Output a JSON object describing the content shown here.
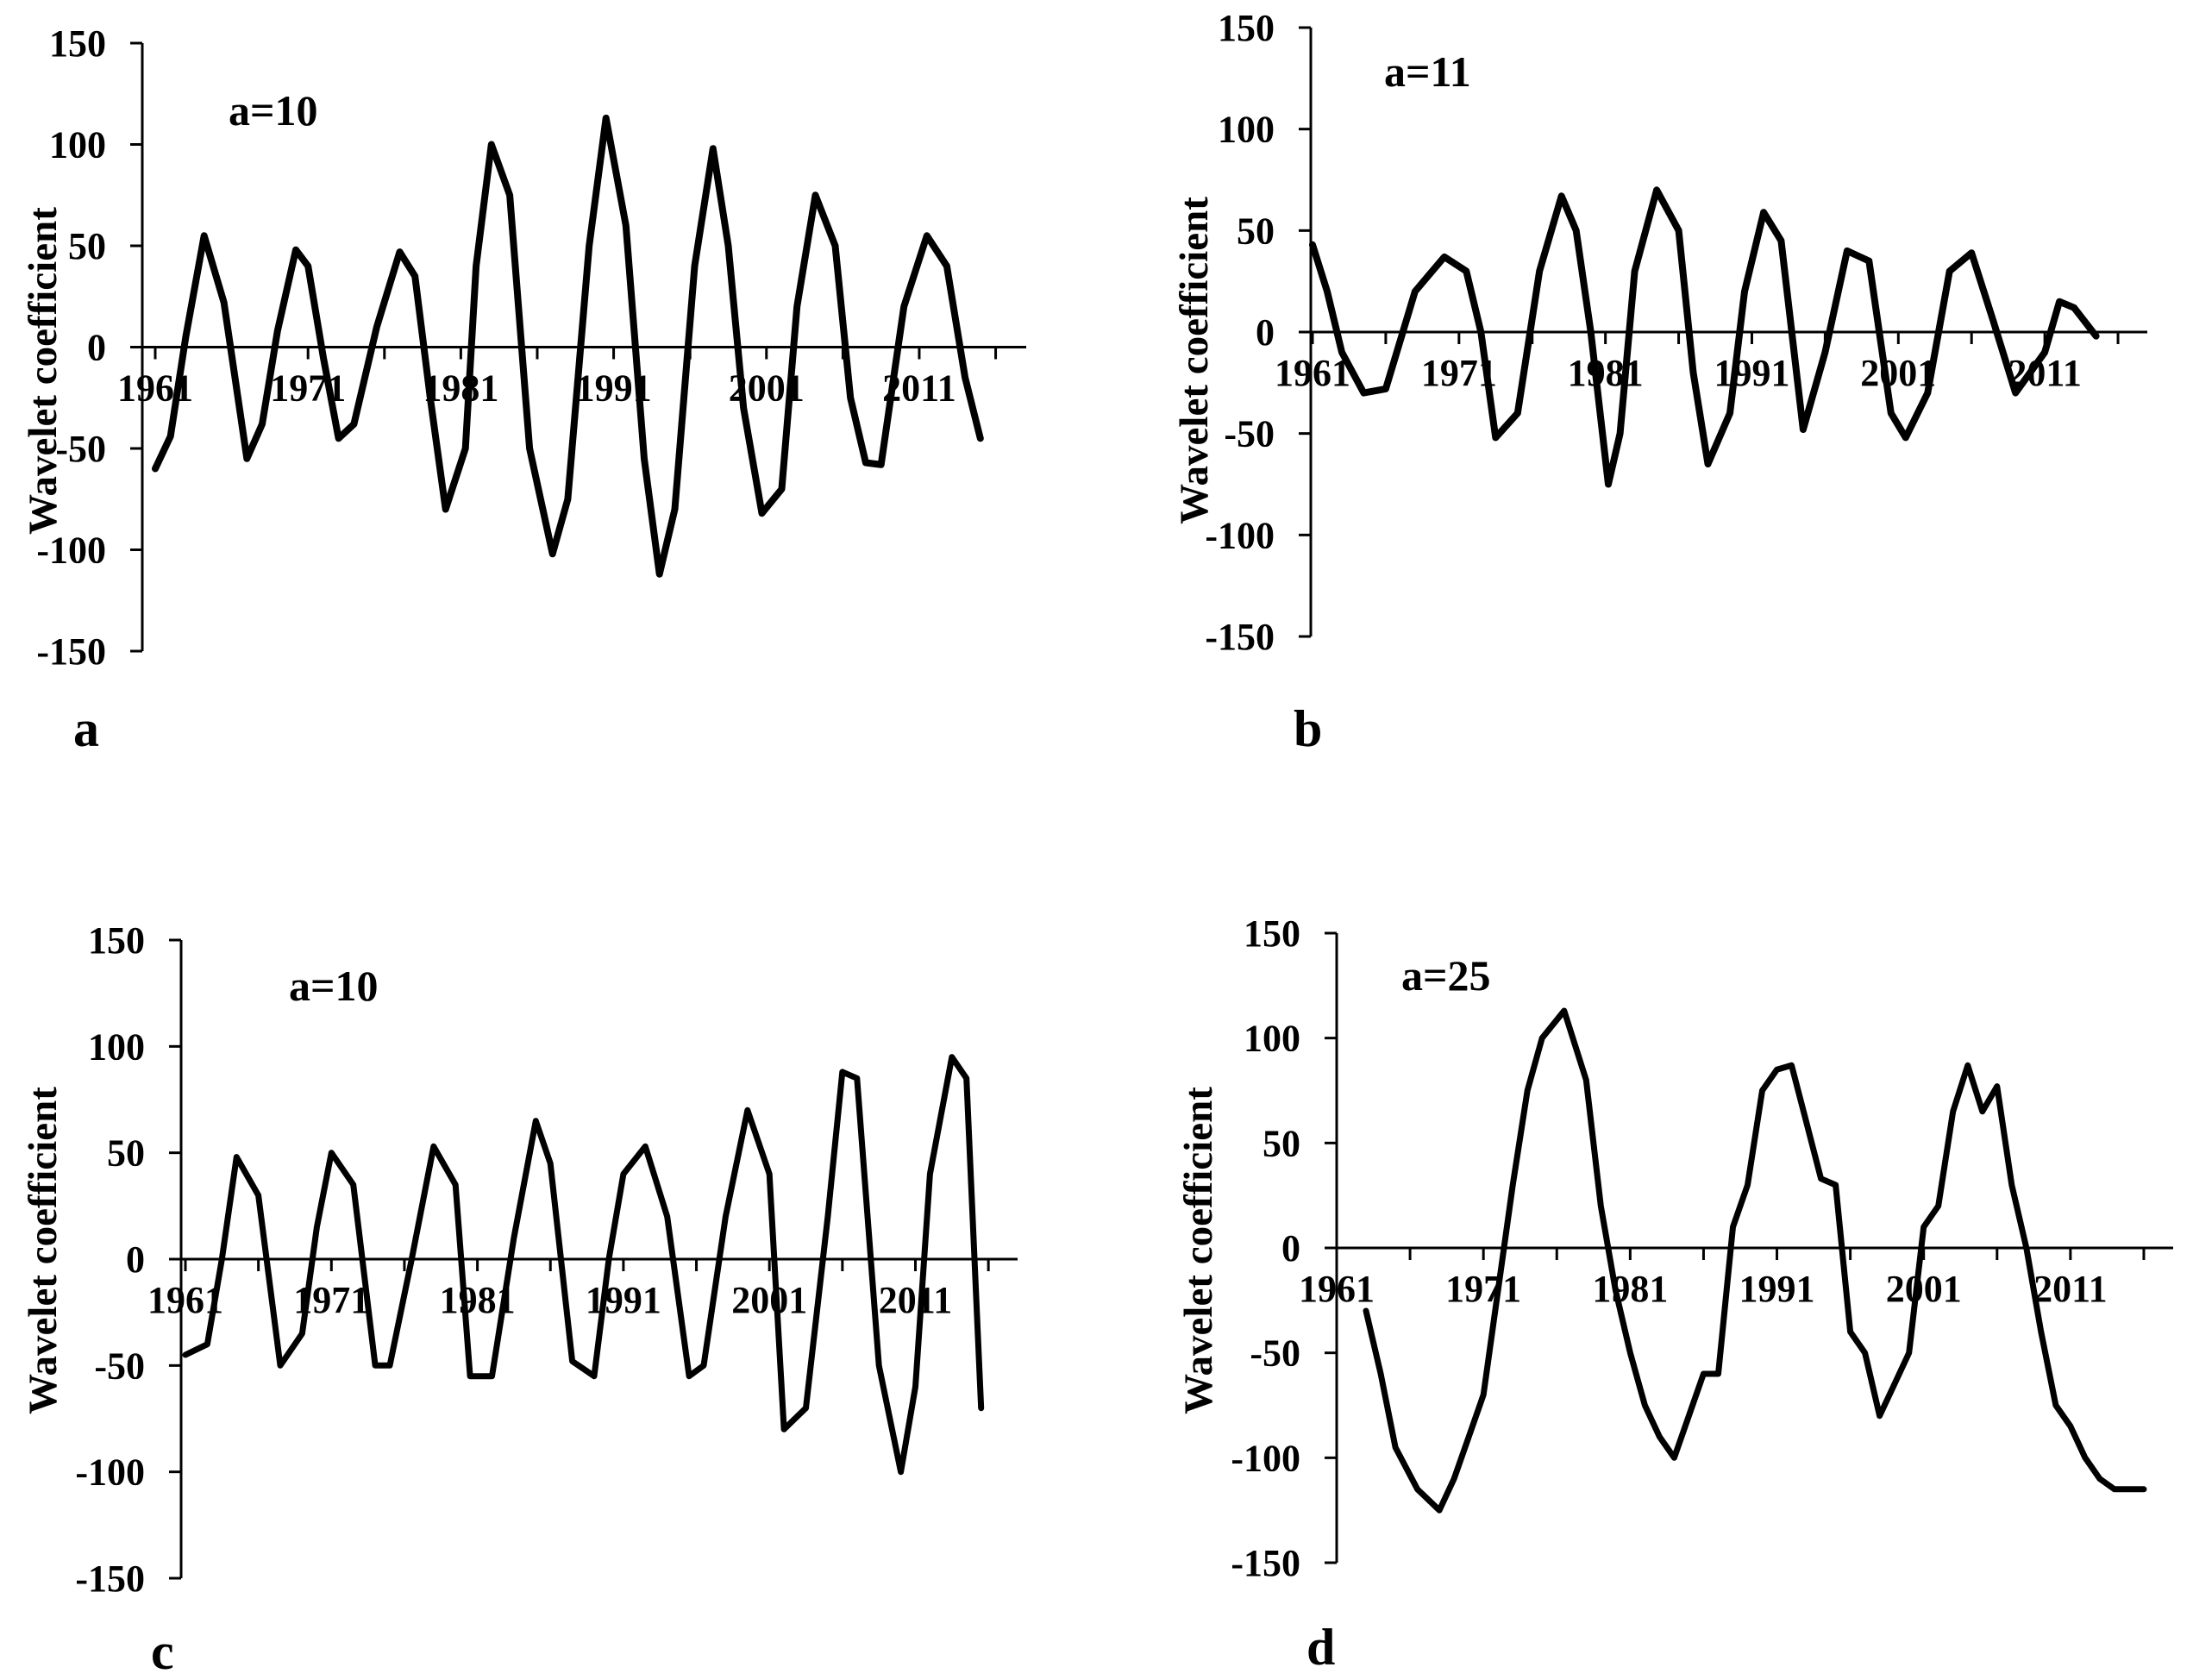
{
  "colors": {
    "line": "#000000",
    "axis": "#000000",
    "background": "#ffffff"
  },
  "chart_data": [
    {
      "panel_label": "a",
      "type": "line",
      "annotation": "a=10",
      "xlabel": "",
      "ylabel": "Wavelet coefficient",
      "ylim": [
        -150,
        150
      ],
      "xlim": [
        1961,
        2018
      ],
      "grid": false,
      "legend": "none",
      "xticks": [
        "1961",
        "1971",
        "1981",
        "1991",
        "2001",
        "2011"
      ],
      "yticks": [
        "150",
        "100",
        "50",
        "0",
        "-50",
        "-100",
        "-150"
      ],
      "x": [
        1961,
        1962,
        1963,
        1964.2,
        1965.5,
        1967,
        1968,
        1969,
        1970.2,
        1971,
        1972,
        1973,
        1974,
        1975.5,
        1977,
        1978,
        1979,
        1980,
        1981.3,
        1982,
        1983,
        1984.2,
        1985.5,
        1987,
        1988,
        1989.4,
        1990.5,
        1991.8,
        1993,
        1994,
        1995,
        1996.3,
        1997.5,
        1998.5,
        1999.5,
        2000.7,
        2002,
        2003,
        2004.2,
        2005.5,
        2006.5,
        2007.5,
        2008.5,
        2010,
        2011.5,
        2012.8,
        2014,
        2015
      ],
      "series": [
        {
          "values": [
            -60,
            -44,
            5,
            55,
            22,
            -55,
            -38,
            8,
            48,
            40,
            -5,
            -45,
            -38,
            10,
            47,
            35,
            -25,
            -80,
            -50,
            40,
            100,
            75,
            -50,
            -102,
            -75,
            50,
            113,
            60,
            -55,
            -112,
            -80,
            40,
            98,
            50,
            -30,
            -82,
            -70,
            20,
            75,
            50,
            -25,
            -57,
            -58,
            20,
            55,
            40,
            -15,
            -45
          ]
        }
      ]
    },
    {
      "panel_label": "b",
      "type": "line",
      "annotation": "a=11",
      "xlabel": "",
      "ylabel": "Wavelet coefficient",
      "ylim": [
        -150,
        150
      ],
      "xlim": [
        1961,
        2018
      ],
      "grid": false,
      "legend": "none",
      "xticks": [
        "1961",
        "1971",
        "1981",
        "1991",
        "2001",
        "2011"
      ],
      "yticks": [
        "150",
        "100",
        "50",
        "0",
        "-50",
        "-100",
        "-150"
      ],
      "x": [
        1961,
        1962,
        1963,
        1964.5,
        1966,
        1968,
        1970,
        1971.5,
        1972.5,
        1973.5,
        1975,
        1976.5,
        1978,
        1979,
        1980,
        1981.2,
        1982,
        1983,
        1984.5,
        1986,
        1987,
        1988,
        1989.5,
        1990.5,
        1991.8,
        1993,
        1994.5,
        1996,
        1997.5,
        1999,
        2000.5,
        2001.5,
        2003,
        2004.5,
        2006,
        2007.5,
        2009,
        2011,
        2012,
        2013,
        2014.5
      ],
      "series": [
        {
          "values": [
            43,
            20,
            -10,
            -30,
            -28,
            20,
            37,
            30,
            0,
            -52,
            -40,
            30,
            67,
            50,
            0,
            -75,
            -50,
            30,
            70,
            50,
            -20,
            -65,
            -40,
            20,
            59,
            45,
            -48,
            -10,
            40,
            35,
            -40,
            -52,
            -30,
            30,
            39,
            5,
            -30,
            -10,
            15,
            12,
            -2
          ]
        }
      ]
    },
    {
      "panel_label": "c",
      "type": "line",
      "annotation": "a=10",
      "xlabel": "",
      "ylabel": "Wavelet coefficient",
      "ylim": [
        -150,
        150
      ],
      "xlim": [
        1961,
        2018
      ],
      "grid": false,
      "legend": "none",
      "xticks": [
        "1961",
        "1971",
        "1981",
        "1991",
        "2001",
        "2011"
      ],
      "yticks": [
        "150",
        "100",
        "50",
        "0",
        "-50",
        "-100",
        "-150"
      ],
      "x": [
        1961,
        1962.5,
        1963.5,
        1964.5,
        1966,
        1967.5,
        1969,
        1970,
        1971,
        1972.5,
        1974,
        1975,
        1976.5,
        1978,
        1979.5,
        1980.5,
        1982,
        1983.5,
        1985,
        1986,
        1987.5,
        1989,
        1990,
        1991,
        1992.5,
        1994,
        1995.5,
        1996.5,
        1998,
        1999.5,
        2001,
        2002,
        2003.5,
        2005,
        2006,
        2007,
        2008.5,
        2010,
        2011,
        2012,
        2013.5,
        2014.5,
        2015.5
      ],
      "series": [
        {
          "values": [
            -45,
            -40,
            0,
            48,
            30,
            -50,
            -35,
            15,
            50,
            35,
            -50,
            -50,
            0,
            53,
            35,
            -55,
            -55,
            10,
            65,
            45,
            -48,
            -55,
            0,
            40,
            53,
            20,
            -55,
            -50,
            20,
            70,
            40,
            -80,
            -70,
            20,
            88,
            85,
            -50,
            -100,
            -60,
            40,
            95,
            85,
            -70
          ]
        }
      ]
    },
    {
      "panel_label": "d",
      "type": "line",
      "annotation": "a=25",
      "xlabel": "",
      "ylabel": "Wavelet coefficient",
      "ylim": [
        -150,
        150
      ],
      "xlim": [
        1961,
        2018
      ],
      "grid": false,
      "legend": "none",
      "xticks": [
        "1961",
        "1971",
        "1981",
        "1991",
        "2001",
        "2011"
      ],
      "yticks": [
        "150",
        "100",
        "50",
        "0",
        "-50",
        "-100",
        "-150"
      ],
      "x": [
        1963,
        1964,
        1965,
        1966.5,
        1968,
        1969,
        1970,
        1971,
        1972,
        1973,
        1974,
        1975,
        1976.5,
        1978,
        1979,
        1980,
        1981,
        1982,
        1983,
        1984,
        1985,
        1986,
        1987,
        1988,
        1989,
        1990,
        1991,
        1992,
        1993,
        1994,
        1995,
        1996,
        1997,
        1998,
        1999,
        2000,
        2001,
        2002,
        2003,
        2004,
        2005,
        2006,
        2007,
        2008,
        2009,
        2010,
        2011,
        2012,
        2013,
        2014,
        2015,
        2016
      ],
      "series": [
        {
          "values": [
            -30,
            -60,
            -95,
            -115,
            -125,
            -110,
            -90,
            -70,
            -20,
            30,
            75,
            100,
            113,
            80,
            20,
            -20,
            -50,
            -75,
            -90,
            -100,
            -80,
            -60,
            -60,
            10,
            30,
            75,
            85,
            87,
            60,
            33,
            30,
            -40,
            -50,
            -80,
            -65,
            -50,
            10,
            20,
            65,
            87,
            65,
            77,
            30,
            0,
            -40,
            -75,
            -85,
            -100,
            -110,
            -115,
            -115,
            -115
          ]
        }
      ]
    }
  ]
}
